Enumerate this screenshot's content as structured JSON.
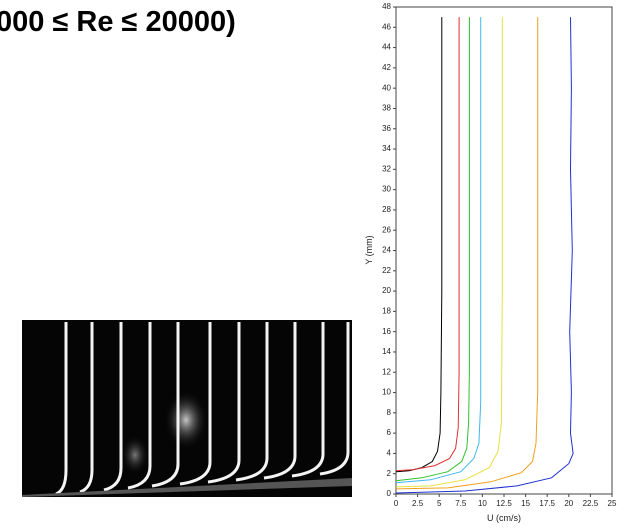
{
  "slide_title": "000 ≤ Re ≤ 20000)",
  "chart_data": {
    "type": "line",
    "xlabel": "U (cm/s)",
    "ylabel": "Y (mm)",
    "xlim": [
      0,
      25
    ],
    "xticks": [
      0,
      2.5,
      5,
      7.5,
      10,
      12.5,
      15,
      17.5,
      20,
      22.5,
      25
    ],
    "ylim": [
      0,
      48
    ],
    "yticks": [
      0,
      2,
      4,
      6,
      8,
      10,
      12,
      14,
      16,
      18,
      20,
      22,
      24,
      26,
      28,
      30,
      32,
      34,
      36,
      38,
      40,
      42,
      44,
      46,
      48
    ],
    "series": [
      {
        "color": "#000000",
        "x": [
          0,
          1.5,
          3,
          4.2,
          4.8,
          5.1,
          5.2,
          5.3,
          5.3,
          5.3
        ],
        "y": [
          2.2,
          2.3,
          2.6,
          3.2,
          4.2,
          6,
          10,
          20,
          35,
          47
        ]
      },
      {
        "color": "#e03030",
        "x": [
          0,
          2,
          4.5,
          6.2,
          6.9,
          7.2,
          7.3,
          7.3,
          7.3
        ],
        "y": [
          2.3,
          2.4,
          2.8,
          3.5,
          4.5,
          6.5,
          12,
          30,
          47
        ]
      },
      {
        "color": "#30c030",
        "x": [
          0,
          3,
          6,
          7.6,
          8.2,
          8.4,
          8.5,
          8.5,
          8.5
        ],
        "y": [
          1.3,
          1.6,
          2.2,
          3.2,
          4.5,
          7,
          12,
          30,
          47
        ]
      },
      {
        "color": "#40b8f0",
        "x": [
          0,
          4,
          7.5,
          9,
          9.6,
          9.8,
          9.8,
          9.8
        ],
        "y": [
          1.1,
          1.4,
          2.2,
          3.5,
          5,
          9,
          25,
          47
        ]
      },
      {
        "color": "#e8e040",
        "x": [
          0,
          4,
          8,
          10.8,
          11.8,
          12.2,
          12.3,
          12.3
        ],
        "y": [
          0.7,
          0.8,
          1.4,
          2.6,
          4.2,
          7,
          20,
          47
        ]
      },
      {
        "color": "#f0a020",
        "x": [
          0,
          6,
          11,
          14.5,
          15.8,
          16.2,
          16.4,
          16.4,
          16.4
        ],
        "y": [
          0.5,
          0.6,
          1.2,
          2.1,
          3.2,
          5,
          10,
          30,
          47
        ]
      },
      {
        "color": "#2030d0",
        "x": [
          0,
          8,
          14,
          18,
          20,
          20.5,
          20.2,
          20.3,
          20.1,
          20.4,
          20.2,
          20.3,
          20.2
        ],
        "y": [
          0.1,
          0.3,
          0.8,
          1.6,
          3,
          4,
          6,
          10,
          16,
          24,
          32,
          40,
          47
        ]
      }
    ]
  }
}
